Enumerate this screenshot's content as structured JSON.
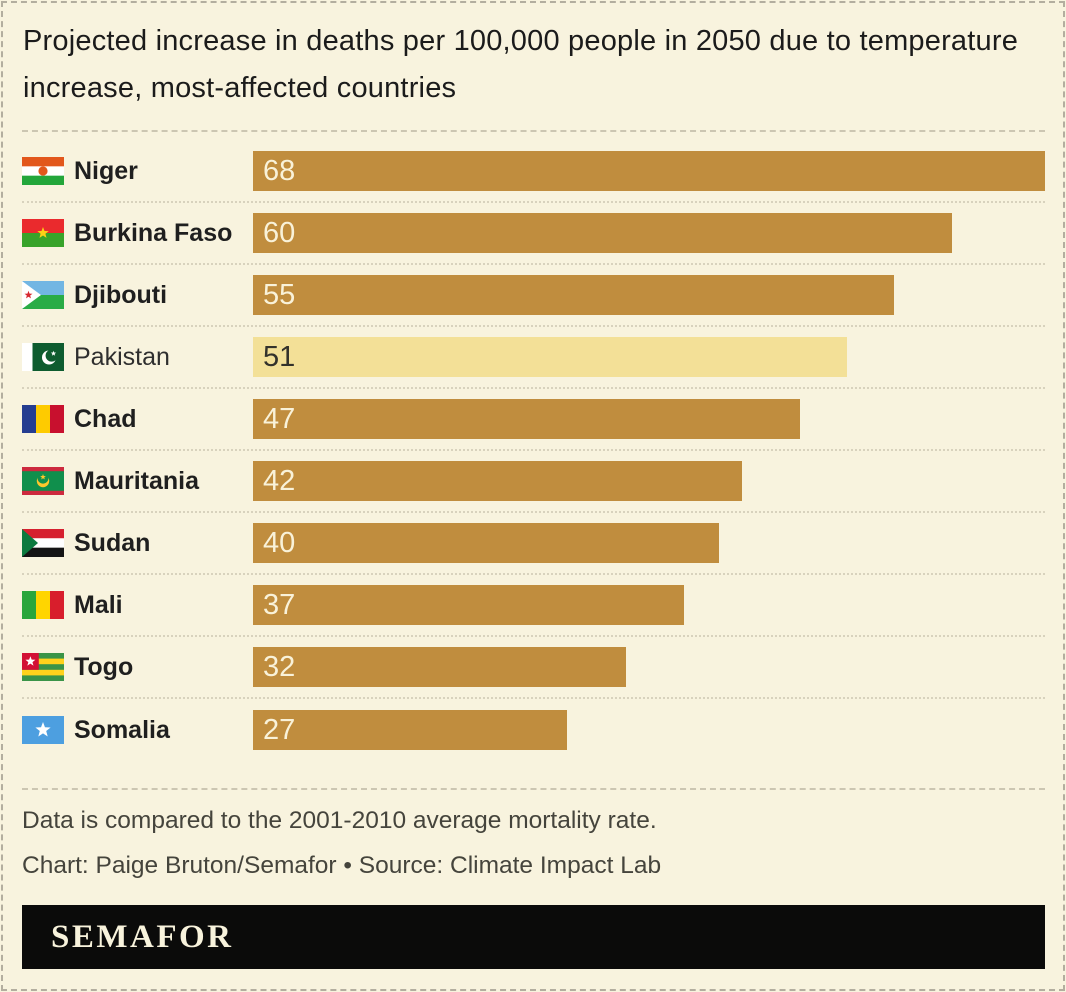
{
  "page": {
    "background_color": "#f8f3de",
    "border_color": "#b3ae9f"
  },
  "header": {
    "title": "Projected increase in deaths per 100,000 people in 2050 due to temperature increase, most-affected countries"
  },
  "chart_data": {
    "type": "bar",
    "orientation": "horizontal",
    "title": "Projected increase in deaths per 100,000 people in 2050 due to temperature increase, most-affected countries",
    "categories": [
      "Niger",
      "Burkina Faso",
      "Djibouti",
      "Pakistan",
      "Chad",
      "Mauritania",
      "Sudan",
      "Mali",
      "Togo",
      "Somalia"
    ],
    "values": [
      68,
      60,
      55,
      51,
      47,
      42,
      40,
      37,
      32,
      27
    ],
    "flags": [
      "niger-flag-icon",
      "burkina-faso-flag-icon",
      "djibouti-flag-icon",
      "pakistan-flag-icon",
      "chad-flag-icon",
      "mauritania-flag-icon",
      "sudan-flag-icon",
      "mali-flag-icon",
      "togo-flag-icon",
      "somalia-flag-icon"
    ],
    "highlighted_category": "Pakistan",
    "xlim": [
      0,
      68
    ],
    "grid": false,
    "legend": false,
    "value_labels_shown": true,
    "bar_color": "#c08d3e",
    "highlight_bar_color": "#f3e097",
    "value_label_color_on_bar": "#f9f2d9",
    "value_label_color_on_highlight": "#33322b"
  },
  "footer": {
    "note": "Data is compared to the 2001-2010 average mortality rate.",
    "credit": "Chart: Paige Bruton/Semafor • Source: Climate Impact Lab"
  },
  "logo": {
    "text": "SEMAFOR"
  }
}
